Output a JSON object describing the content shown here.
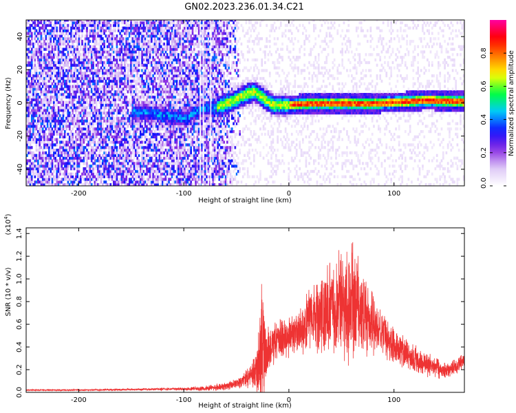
{
  "title": "GN02.2023.236.01.34.C21",
  "chart_data": [
    {
      "type": "heatmap",
      "xlabel": "Height of straight line (km)",
      "ylabel": "Frequency (Hz)",
      "xlim": [
        -250,
        167
      ],
      "ylim": [
        -50,
        50
      ],
      "x_ticks": [
        -200,
        -100,
        0,
        100
      ],
      "y_ticks": [
        -40,
        -20,
        0,
        20,
        40
      ],
      "colorbar": {
        "label": "Normalized spectral amplitude",
        "range": [
          0,
          1
        ],
        "ticks": [
          0.0,
          0.2,
          0.4,
          0.6,
          0.8
        ],
        "tick_labels": [
          "0.0",
          "0.2",
          "0.4",
          "0.6",
          "0.8"
        ],
        "colormap": [
          "#ffffff",
          "#dcc6f6",
          "#8a2be2",
          "#1010ff",
          "#00c8ff",
          "#00ff40",
          "#ffff00",
          "#ff8000",
          "#ff0000",
          "#ff00a0"
        ]
      },
      "ridge": {
        "description_points_x": [
          -145,
          -120,
          -100,
          -85,
          -70,
          -55,
          -40,
          -33,
          -25,
          -15,
          0,
          20,
          50,
          80,
          110,
          130,
          167
        ],
        "description_points_y": [
          -6,
          -8,
          -10,
          -5,
          -3,
          0,
          5,
          6,
          2,
          -2,
          -2,
          -1,
          -1,
          -1,
          0,
          1,
          0
        ]
      }
    },
    {
      "type": "line",
      "xlabel": "Height of straight line (km)",
      "ylabel": "SNR (10 * v/v)",
      "multiplier_label": "(x10",
      "multiplier_exp": "4",
      "xlim": [
        -250,
        167
      ],
      "ylim": [
        0,
        14500
      ],
      "x_ticks": [
        -200,
        -100,
        0,
        100
      ],
      "y_ticks": [
        0,
        2000,
        4000,
        6000,
        8000,
        10000,
        12000,
        14000
      ],
      "y_tick_labels": [
        "0.0",
        "0.2",
        "0.4",
        "0.6",
        "0.8",
        "1.0",
        "1.2",
        "1.4"
      ],
      "series": [
        {
          "color": "#ee3333",
          "envelope_x": [
            -250,
            -200,
            -150,
            -100,
            -80,
            -60,
            -45,
            -35,
            -28,
            -25,
            -22,
            -18,
            -12,
            0,
            10,
            20,
            30,
            40,
            50,
            60,
            70,
            80,
            90,
            100,
            110,
            120,
            130,
            140,
            150,
            160,
            167
          ],
          "envelope_mean": [
            200,
            200,
            250,
            300,
            350,
            500,
            900,
            1500,
            2500,
            5000,
            3000,
            4000,
            4500,
            5000,
            5500,
            6500,
            7000,
            7500,
            8000,
            7800,
            7000,
            6000,
            5000,
            4200,
            3500,
            2800,
            2500,
            2200,
            1800,
            2400,
            2800
          ],
          "envelope_amp": [
            80,
            80,
            100,
            150,
            250,
            400,
            600,
            1200,
            3500,
            7500,
            2500,
            2500,
            2000,
            2200,
            2500,
            3000,
            4000,
            5000,
            6000,
            6500,
            4000,
            3000,
            2000,
            1800,
            1600,
            1500,
            1200,
            1000,
            800,
            800,
            800
          ]
        }
      ]
    }
  ]
}
